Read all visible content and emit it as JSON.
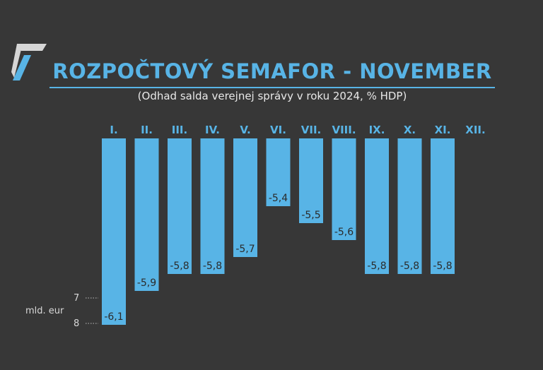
{
  "title": "ROZPOČTOVÝ SEMAFOR - NOVEMBER",
  "subtitle": "(Odhad salda verejnej správy v roku 2024, % HDP)",
  "colors": {
    "background": "#373737",
    "accent": "#58b4e6",
    "text": "#e8e8e8"
  },
  "icons": {
    "logo": "logo-icon"
  },
  "chart_data": {
    "type": "bar",
    "categories": [
      "I.",
      "II.",
      "III.",
      "IV.",
      "V.",
      "VI.",
      "VII.",
      "VIII.",
      "IX.",
      "X.",
      "XI.",
      "XII."
    ],
    "values": [
      -6.1,
      -5.9,
      -5.8,
      -5.8,
      -5.7,
      -5.4,
      -5.5,
      -5.6,
      -5.8,
      -5.8,
      -5.8,
      null
    ],
    "value_labels": [
      "-6,1",
      "-5,9",
      "-5,8",
      "-5,8",
      "-5,7",
      "-5,4",
      "-5,5",
      "-5,6",
      "-5,8",
      "-5,8",
      "-5,8",
      ""
    ],
    "axis_ticks": [
      "7",
      "8"
    ],
    "axis_unit": "mld. eur",
    "title": "ROZPOČTOVÝ SEMAFOR - NOVEMBER",
    "subtitle": "(Odhad salda verejnej správy v roku 2024, % HDP)"
  }
}
